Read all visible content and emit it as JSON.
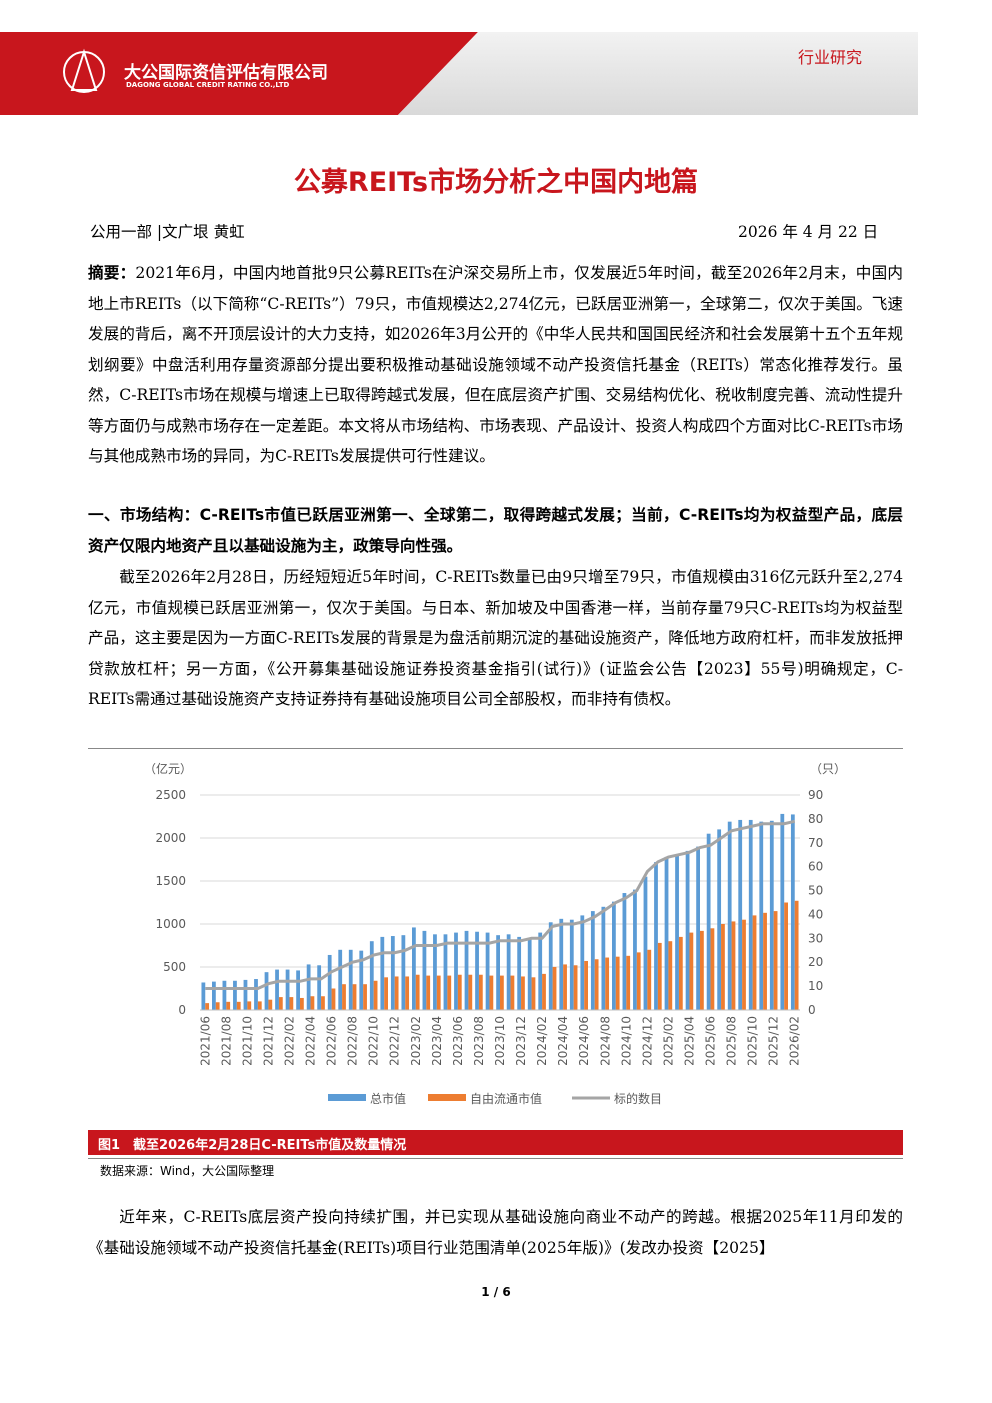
{
  "header": {
    "company_cn": "大公国际资信评估有限公司",
    "company_en": "DAGONG GLOBAL CREDIT RATING CO.,LTD",
    "section": "行业研究"
  },
  "title": "公募REITs市场分析之中国内地篇",
  "byline": {
    "authors": "公用一部 |文广垠 黄虹",
    "date": "2026 年 4 月 22 日"
  },
  "abstract": {
    "label": "摘要：",
    "text": "2021年6月，中国内地首批9只公募REITs在沪深交易所上市，仅发展近5年时间，截至2026年2月末，中国内地上市REITs（以下简称“C-REITs”）79只，市值规模达2,274亿元，已跃居亚洲第一，全球第二，仅次于美国。飞速发展的背后，离不开顶层设计的大力支持，如2026年3月公开的《中华人民共和国国民经济和社会发展第十五个五年规划纲要》中盘活利用存量资源部分提出要积极推动基础设施领域不动产投资信托基金（REITs）常态化推荐发行。虽然，C-REITs市场在规模与增速上已取得跨越式发展，但在底层资产扩围、交易结构优化、税收制度完善、流动性提升等方面仍与成熟市场存在一定差距。本文将从市场结构、市场表现、产品设计、投资人构成四个方面对比C-REITs市场与其他成熟市场的异同，为C-REITs发展提供可行性建议。"
  },
  "section1": {
    "heading": "一、市场结构：C-REITs市值已跃居亚洲第一、全球第二，取得跨越式发展；当前，C-REITs均为权益型产品，底层资产仅限内地资产且以基础设施为主，政策导向性强。",
    "paragraph": "截至2026年2月28日，历经短短近5年时间，C-REITs数量已由9只增至79只，市值规模由316亿元跃升至2,274亿元，市值规模已跃居亚洲第一，仅次于美国。与日本、新加坡及中国香港一样，当前存量79只C-REITs均为权益型产品，这主要是因为一方面C-REITs发展的背景是为盘活前期沉淀的基础设施资产，降低地方政府杠杆，而非发放抵押贷款放杠杆；另一方面，《公开募集基础设施证券投资基金指引(试行)》(证监会公告【2023】55号)明确规定，C-REITs需通过基础设施资产支持证券持有基础设施项目公司全部股权，而非持有债权。"
  },
  "chart_data": {
    "type": "bar",
    "y_unit": "（亿元）",
    "y2_unit": "（只）",
    "categories": [
      "2021/06",
      null,
      "2021/08",
      null,
      "2021/10",
      null,
      "2021/12",
      null,
      "2022/02",
      null,
      "2022/04",
      null,
      "2022/06",
      null,
      "2022/08",
      null,
      "2022/10",
      null,
      "2022/12",
      null,
      "2023/02",
      null,
      "2023/04",
      null,
      "2023/06",
      null,
      "2023/08",
      null,
      "2023/10",
      null,
      "2023/12",
      null,
      "2024/02",
      null,
      "2024/04",
      null,
      "2024/06",
      null,
      "2024/08",
      null,
      "2024/10",
      null,
      "2024/12",
      null,
      "2025/02",
      null,
      "2025/04",
      null,
      "2025/06",
      null,
      "2025/08",
      null,
      "2025/10",
      null,
      "2025/12",
      null,
      "2026/02"
    ],
    "series": [
      {
        "name": "总市值",
        "type": "bar",
        "color": "#5b9bd5",
        "values": [
          320,
          330,
          340,
          340,
          350,
          360,
          440,
          470,
          470,
          460,
          530,
          520,
          640,
          700,
          700,
          690,
          800,
          850,
          860,
          870,
          960,
          920,
          880,
          880,
          900,
          920,
          910,
          900,
          870,
          880,
          850,
          830,
          900,
          1020,
          1060,
          1050,
          1100,
          1150,
          1200,
          1260,
          1360,
          1400,
          1550,
          1720,
          1780,
          1800,
          1850,
          1900,
          2050,
          2100,
          2190,
          2210,
          2210,
          2190,
          2200,
          2280,
          2274
        ]
      },
      {
        "name": "自由流通市值",
        "type": "bar",
        "color": "#ed7d31",
        "values": [
          80,
          90,
          95,
          95,
          100,
          100,
          120,
          150,
          150,
          140,
          160,
          160,
          250,
          300,
          300,
          300,
          340,
          380,
          390,
          390,
          410,
          400,
          400,
          400,
          410,
          410,
          410,
          400,
          400,
          400,
          390,
          380,
          420,
          500,
          530,
          520,
          570,
          590,
          610,
          620,
          630,
          670,
          700,
          780,
          800,
          850,
          900,
          920,
          950,
          1000,
          1030,
          1050,
          1100,
          1130,
          1150,
          1250,
          1270
        ]
      },
      {
        "name": "标的数目",
        "type": "line",
        "axis": "y2",
        "color": "#a5a5a5",
        "values": [
          9,
          9,
          9,
          9,
          9,
          9,
          11,
          12,
          12,
          12,
          13,
          13,
          16,
          18,
          20,
          21,
          23,
          24,
          24,
          25,
          27,
          27,
          27,
          28,
          28,
          28,
          28,
          28,
          29,
          29,
          29,
          30,
          30,
          35,
          36,
          36,
          37,
          39,
          42,
          45,
          47,
          50,
          58,
          62,
          64,
          65,
          66,
          68,
          69,
          72,
          75,
          76,
          77,
          78,
          78,
          78,
          79
        ]
      }
    ],
    "ylim": [
      0,
      2500
    ],
    "yticks": [
      0,
      500,
      1000,
      1500,
      2000,
      2500
    ],
    "y2lim": [
      0,
      90
    ],
    "y2ticks": [
      0,
      10,
      20,
      30,
      40,
      50,
      60,
      70,
      80,
      90
    ],
    "grid": true,
    "legend": "bottom"
  },
  "figure": {
    "caption": "图1　截至2026年2月28日C-REITs市值及数量情况",
    "source": "数据来源：Wind，大公国际整理"
  },
  "after": "近年来，C-REITs底层资产投向持续扩围，并已实现从基础设施向商业不动产的跨越。根据2025年11月印发的《基础设施领域不动产投资信托基金(REITs)项目行业范围清单(2025年版)》(发改办投资【2025】",
  "page_number": "1 / 6"
}
